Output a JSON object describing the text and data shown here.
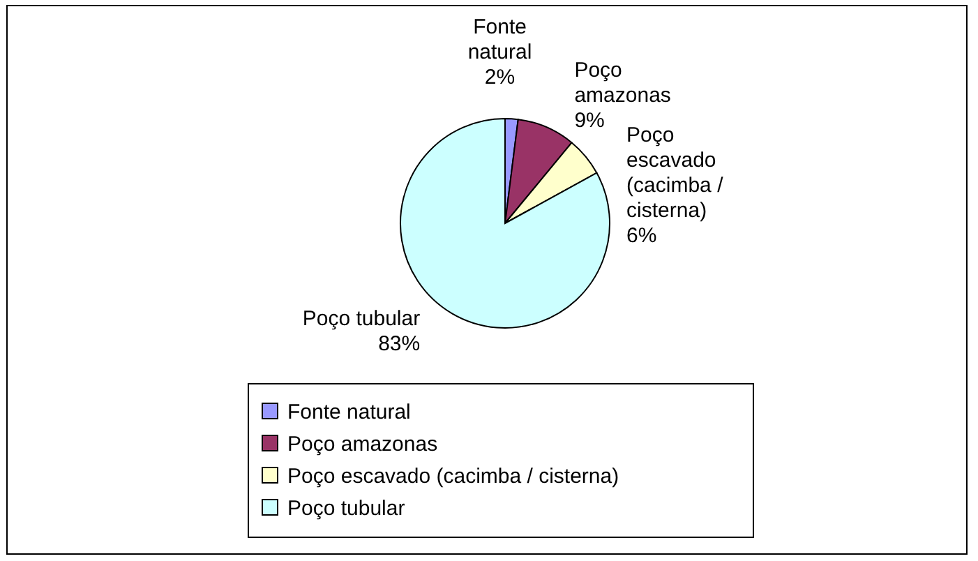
{
  "chart_data": {
    "type": "pie",
    "categories": [
      "Fonte natural",
      "Poço amazonas",
      "Poço escavado (cacimba / cisterna)",
      "Poço tubular"
    ],
    "values": [
      2,
      9,
      6,
      83
    ],
    "colors": [
      "#9999ff",
      "#993366",
      "#ffffcc",
      "#ccffff"
    ],
    "value_labels": [
      "2%",
      "9%",
      "6%",
      "83%"
    ],
    "legend": "bottom"
  }
}
